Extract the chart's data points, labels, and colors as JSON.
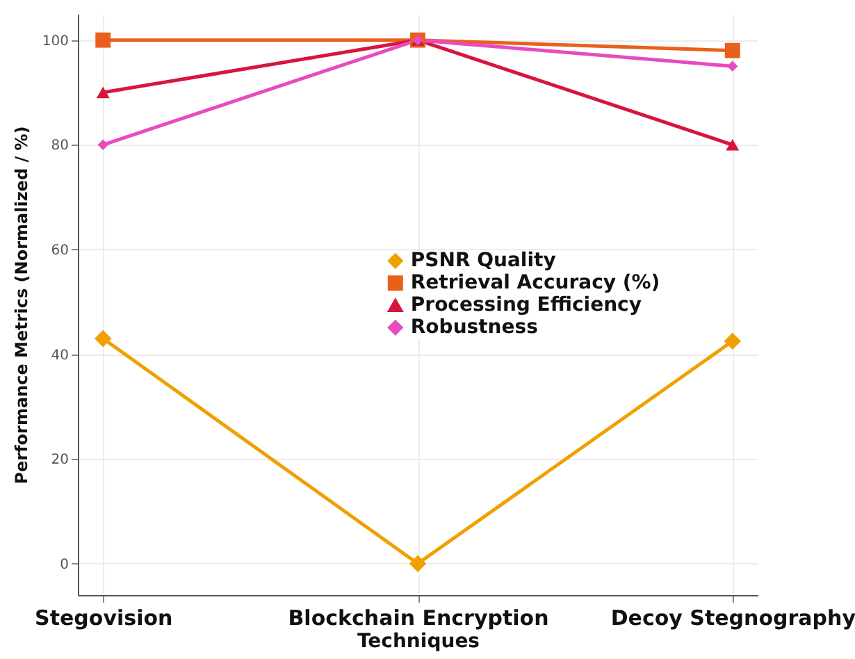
{
  "chart_data": {
    "type": "line",
    "xlabel": "Techniques",
    "ylabel": "Performance Metrics (Normalized / %)",
    "categories": [
      "Stegovision",
      "Blockchain Encryption",
      "Decoy Stegnography"
    ],
    "series": [
      {
        "name": "PSNR Quality",
        "color": "#f0a000",
        "marker": "diamond",
        "values": [
          43,
          0,
          42.5
        ]
      },
      {
        "name": "Retrieval Accuracy (%)",
        "color": "#e8601c",
        "marker": "square",
        "values": [
          100,
          100,
          98
        ]
      },
      {
        "name": "Processing Efficiency",
        "color": "#d6163c",
        "marker": "triangle",
        "values": [
          90,
          100,
          80
        ]
      },
      {
        "name": "Robustness",
        "color": "#e84bc0",
        "marker": "diamond",
        "values": [
          80,
          100,
          95
        ]
      }
    ],
    "ylim": [
      -6,
      105
    ],
    "yticks": [
      0,
      20,
      40,
      60,
      80,
      100
    ],
    "grid": true,
    "legend": "center",
    "line_style": "solid"
  }
}
